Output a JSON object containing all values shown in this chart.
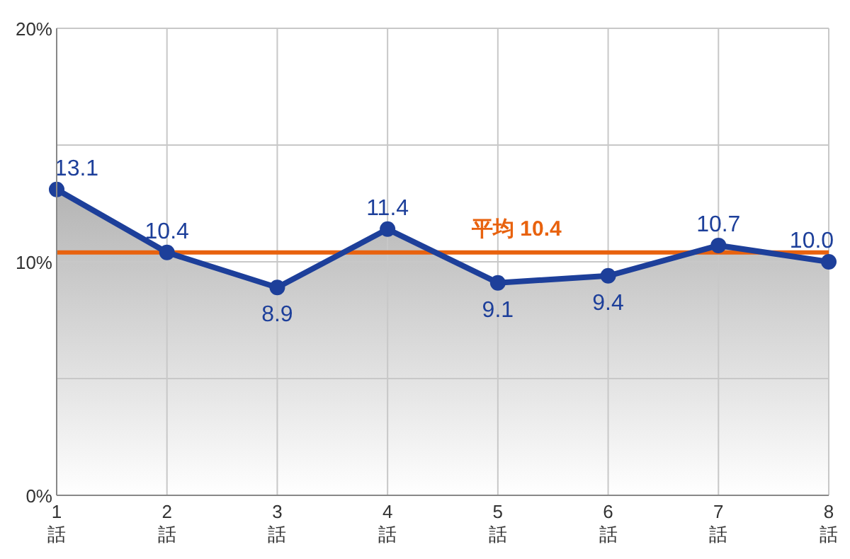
{
  "chart_data": {
    "type": "area",
    "categories": [
      "1話",
      "2話",
      "3話",
      "4話",
      "5話",
      "6話",
      "7話",
      "8話"
    ],
    "series": [
      {
        "color": "#1d3f9a",
        "values": [
          13.1,
          10.4,
          8.9,
          11.4,
          9.1,
          9.4,
          10.7,
          10.0
        ],
        "value_labels": [
          "13.1",
          "10.4",
          "8.9",
          "11.4",
          "9.1",
          "9.4",
          "10.7",
          "10.0"
        ]
      }
    ],
    "ylim": [
      0,
      20
    ],
    "yticks": [
      {
        "value": 0,
        "label": "0%"
      },
      {
        "value": 5,
        "label": null
      },
      {
        "value": 10,
        "label": "10%"
      },
      {
        "value": 15,
        "label": null
      },
      {
        "value": 20,
        "label": "20%"
      }
    ],
    "grid": true,
    "marker": "circle",
    "ref_lines": [
      {
        "axis": "y",
        "value": 10.4,
        "label": "平均 10.4",
        "color": "#e8620e"
      }
    ]
  }
}
